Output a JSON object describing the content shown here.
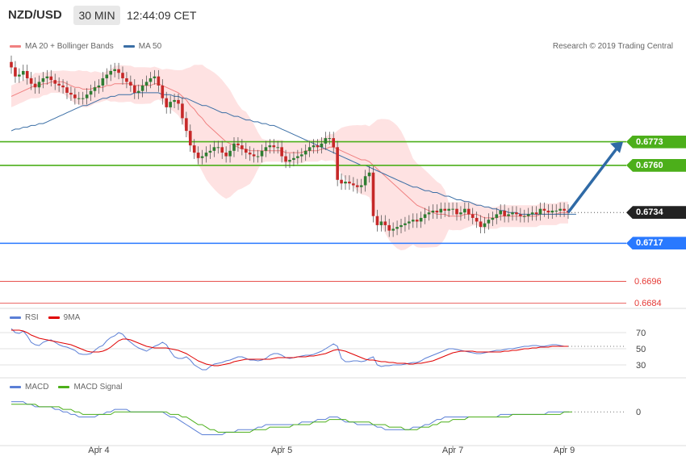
{
  "header": {
    "symbol": "NZD/USD",
    "timeframe": "30 MIN",
    "time": "12:44:09 CET"
  },
  "legend_main": [
    {
      "label": "MA 20 + Bollinger Bands",
      "color": "#f08080"
    },
    {
      "label": "MA 50",
      "color": "#3a6ea5"
    }
  ],
  "research": "Research © 2019 Trading Central",
  "price_levels": [
    {
      "value": 0.6773,
      "label": "0.6773",
      "color": "#4caf1a",
      "style": "solid-green"
    },
    {
      "value": 0.676,
      "label": "0.6760",
      "color": "#4caf1a",
      "style": "solid-green"
    },
    {
      "value": 0.6734,
      "label": "0.6734",
      "color": "#222222",
      "style": "current"
    },
    {
      "value": 0.6717,
      "label": "0.6717",
      "color": "#2979ff",
      "style": "solid-blue"
    },
    {
      "value": 0.6696,
      "label": "0.6696",
      "color": "#e53935",
      "style": "thin-red"
    },
    {
      "value": 0.6684,
      "label": "0.6684",
      "color": "#e53935",
      "style": "thin-red"
    }
  ],
  "rsi_panel": {
    "legend": [
      {
        "label": "RSI",
        "color": "#5b7fd6"
      },
      {
        "label": "9MA",
        "color": "#e00000"
      }
    ],
    "ticks": [
      "70",
      "50",
      "30"
    ]
  },
  "macd_panel": {
    "legend": [
      {
        "label": "MACD",
        "color": "#5b7fd6"
      },
      {
        "label": "MACD Signal",
        "color": "#4caf1a"
      }
    ],
    "ticks": [
      "0"
    ]
  },
  "x_labels": [
    "Apr 4",
    "Apr 5",
    "Apr 7",
    "Apr 9"
  ],
  "chart_data": {
    "type": "candlestick",
    "symbol": "NZD/USD",
    "timeframe": "30 MIN",
    "ylim": [
      0.6682,
      0.682
    ],
    "rsi_ylim": [
      20,
      80
    ],
    "macd_ylim": [
      -0.0012,
      0.0008
    ],
    "closes": [
      0.6814,
      0.6809,
      0.681,
      0.6812,
      0.6808,
      0.6805,
      0.6803,
      0.6806,
      0.6808,
      0.6809,
      0.6807,
      0.6805,
      0.6804,
      0.6803,
      0.68,
      0.6799,
      0.6797,
      0.6797,
      0.6797,
      0.6799,
      0.6801,
      0.6803,
      0.6804,
      0.6808,
      0.681,
      0.6812,
      0.6813,
      0.6811,
      0.6808,
      0.6806,
      0.6804,
      0.68,
      0.6801,
      0.6804,
      0.6806,
      0.6808,
      0.6809,
      0.6804,
      0.6797,
      0.6792,
      0.6795,
      0.6796,
      0.6794,
      0.6786,
      0.6779,
      0.6771,
      0.6767,
      0.6764,
      0.6765,
      0.6767,
      0.6768,
      0.677,
      0.677,
      0.6767,
      0.6765,
      0.6768,
      0.6772,
      0.6771,
      0.6769,
      0.6767,
      0.6766,
      0.6765,
      0.6765,
      0.6768,
      0.677,
      0.6771,
      0.677,
      0.677,
      0.6765,
      0.6762,
      0.6763,
      0.6764,
      0.6765,
      0.6766,
      0.6768,
      0.677,
      0.6771,
      0.677,
      0.6772,
      0.6775,
      0.6775,
      0.677,
      0.6752,
      0.675,
      0.6751,
      0.675,
      0.6749,
      0.6748,
      0.6749,
      0.6754,
      0.6756,
      0.6732,
      0.6727,
      0.6729,
      0.6727,
      0.6724,
      0.6725,
      0.6726,
      0.6727,
      0.6728,
      0.6729,
      0.673,
      0.6729,
      0.6731,
      0.6733,
      0.6734,
      0.6735,
      0.6734,
      0.6736,
      0.6735,
      0.6736,
      0.6736,
      0.6733,
      0.6734,
      0.6736,
      0.6733,
      0.6731,
      0.6729,
      0.6726,
      0.6728,
      0.673,
      0.6731,
      0.6733,
      0.6735,
      0.6732,
      0.6733,
      0.6734,
      0.6733,
      0.6732,
      0.6732,
      0.6733,
      0.6734,
      0.6733,
      0.6736,
      0.6735,
      0.6734,
      0.6735,
      0.6735,
      0.6736,
      0.6735,
      0.6734
    ],
    "ma20": [
      0.6798,
      0.6799,
      0.68,
      0.6801,
      0.6802,
      0.6803,
      0.6804,
      0.6804,
      0.6805,
      0.6805,
      0.6806,
      0.6806,
      0.6806,
      0.6806,
      0.6805,
      0.6804,
      0.6803,
      0.6803,
      0.6802,
      0.6802,
      0.6802,
      0.6803,
      0.6803,
      0.6803,
      0.6804,
      0.6804,
      0.6805,
      0.6805,
      0.6805,
      0.6805,
      0.6805,
      0.6804,
      0.6804,
      0.6804,
      0.6804,
      0.6804,
      0.6805,
      0.6805,
      0.6804,
      0.6803,
      0.6802,
      0.6801,
      0.68,
      0.6798,
      0.6796,
      0.6793,
      0.6791,
      0.6788,
      0.6786,
      0.6783,
      0.6781,
      0.6779,
      0.6777,
      0.6775,
      0.6773,
      0.6772,
      0.6771,
      0.677,
      0.6769,
      0.6769,
      0.6768,
      0.6768,
      0.6768,
      0.6768,
      0.6768,
      0.6768,
      0.6768,
      0.6768,
      0.6768,
      0.6767,
      0.6767,
      0.6767,
      0.6767,
      0.6767,
      0.6768,
      0.6768,
      0.6768,
      0.6768,
      0.6769,
      0.6769,
      0.677,
      0.677,
      0.6769,
      0.6768,
      0.6767,
      0.6766,
      0.6765,
      0.6764,
      0.6763,
      0.6763,
      0.6762,
      0.676,
      0.6758,
      0.6756,
      0.6754,
      0.6752,
      0.675,
      0.6748,
      0.6746,
      0.6744,
      0.6742,
      0.674,
      0.6738,
      0.6737,
      0.6736,
      0.6735,
      0.6734,
      0.6733,
      0.6733,
      0.6733,
      0.6732,
      0.6732,
      0.6732,
      0.6732,
      0.6733,
      0.6733,
      0.6733,
      0.6733,
      0.6732,
      0.6731,
      0.6731,
      0.6731,
      0.6731,
      0.6732,
      0.6732,
      0.6732,
      0.6732,
      0.6732,
      0.6732,
      0.6732,
      0.6732,
      0.6732,
      0.6732,
      0.6733,
      0.6733,
      0.6733,
      0.6733,
      0.6733,
      0.6734,
      0.6734,
      0.6734
    ],
    "ma50": [
      0.6779,
      0.678,
      0.678,
      0.6781,
      0.6781,
      0.6782,
      0.6782,
      0.6783,
      0.6783,
      0.6784,
      0.6785,
      0.6786,
      0.6787,
      0.6788,
      0.6789,
      0.679,
      0.6791,
      0.6792,
      0.6793,
      0.6793,
      0.6794,
      0.6795,
      0.6796,
      0.6797,
      0.6797,
      0.6798,
      0.6798,
      0.6799,
      0.6799,
      0.6799,
      0.6799,
      0.68,
      0.68,
      0.68,
      0.68,
      0.68,
      0.68,
      0.68,
      0.6799,
      0.6799,
      0.6799,
      0.6798,
      0.6798,
      0.6797,
      0.6797,
      0.6796,
      0.6795,
      0.6794,
      0.6793,
      0.6793,
      0.6792,
      0.6791,
      0.679,
      0.6789,
      0.6789,
      0.6788,
      0.6787,
      0.6787,
      0.6786,
      0.6785,
      0.6785,
      0.6784,
      0.6784,
      0.6783,
      0.6783,
      0.6782,
      0.6782,
      0.6781,
      0.678,
      0.6779,
      0.6778,
      0.6777,
      0.6776,
      0.6775,
      0.6774,
      0.6773,
      0.6772,
      0.6771,
      0.677,
      0.6769,
      0.6768,
      0.6767,
      0.6766,
      0.6765,
      0.6764,
      0.6763,
      0.6762,
      0.6761,
      0.676,
      0.676,
      0.6759,
      0.6758,
      0.6757,
      0.6756,
      0.6755,
      0.6754,
      0.6753,
      0.6752,
      0.6751,
      0.675,
      0.6749,
      0.6748,
      0.6748,
      0.6747,
      0.6746,
      0.6746,
      0.6745,
      0.6745,
      0.6744,
      0.6743,
      0.6743,
      0.6742,
      0.6741,
      0.6741,
      0.674,
      0.674,
      0.6739,
      0.6738,
      0.6738,
      0.6737,
      0.6737,
      0.6736,
      0.6736,
      0.6735,
      0.6735,
      0.6734,
      0.6734,
      0.6734,
      0.6733,
      0.6733,
      0.6733,
      0.6733,
      0.6733,
      0.6733,
      0.6733,
      0.6733,
      0.6733,
      0.6733,
      0.6733,
      0.6733,
      0.6733,
      0.6733,
      0.6733
    ],
    "rsi": [
      75,
      70,
      69,
      72,
      66,
      58,
      55,
      54,
      58,
      60,
      61,
      58,
      55,
      53,
      52,
      50,
      48,
      44,
      43,
      43,
      44,
      48,
      52,
      54,
      60,
      64,
      66,
      70,
      68,
      62,
      58,
      54,
      51,
      49,
      47,
      50,
      53,
      55,
      58,
      55,
      47,
      40,
      38,
      38,
      40,
      36,
      30,
      27,
      24,
      24,
      28,
      31,
      32,
      33,
      35,
      36,
      38,
      40,
      40,
      38,
      36,
      36,
      35,
      36,
      38,
      42,
      44,
      44,
      42,
      39,
      38,
      39,
      40,
      41,
      42,
      42,
      43,
      45,
      47,
      50,
      53,
      56,
      53,
      38,
      34,
      34,
      35,
      35,
      34,
      35,
      38,
      40,
      30,
      28,
      29,
      29,
      30,
      30,
      30,
      31,
      32,
      33,
      33,
      35,
      38,
      40,
      42,
      44,
      46,
      48,
      50,
      50,
      49,
      48,
      47,
      46,
      45,
      44,
      44,
      45,
      46,
      47,
      48,
      48,
      49,
      50,
      50,
      51,
      52,
      53,
      53,
      54,
      54,
      53,
      53,
      54,
      55,
      55,
      54,
      53,
      53
    ],
    "rsi_ma": [
      73,
      73,
      73,
      72,
      70,
      67,
      65,
      63,
      62,
      61,
      60,
      59,
      58,
      57,
      56,
      55,
      53,
      51,
      49,
      47,
      46,
      46,
      46,
      47,
      49,
      52,
      56,
      60,
      62,
      62,
      61,
      59,
      57,
      55,
      53,
      52,
      51,
      51,
      51,
      51,
      50,
      49,
      48,
      46,
      44,
      41,
      38,
      35,
      33,
      31,
      30,
      29,
      29,
      30,
      31,
      32,
      34,
      35,
      36,
      37,
      37,
      37,
      37,
      37,
      37,
      37,
      38,
      39,
      39,
      39,
      39,
      39,
      40,
      40,
      40,
      41,
      41,
      42,
      43,
      44,
      46,
      48,
      49,
      48,
      47,
      45,
      43,
      41,
      39,
      37,
      36,
      36,
      35,
      34,
      34,
      33,
      33,
      32,
      32,
      32,
      31,
      31,
      32,
      32,
      33,
      34,
      35,
      37,
      39,
      41,
      43,
      45,
      46,
      47,
      47,
      47,
      47,
      46,
      46,
      46,
      46,
      46,
      46,
      46,
      47,
      47,
      48,
      48,
      49,
      50,
      50,
      51,
      51,
      52,
      52,
      52,
      53,
      53,
      53,
      53,
      53
    ],
    "macd": [
      0.0004,
      0.0004,
      0.0004,
      0.0004,
      0.0003,
      0.0003,
      0.0002,
      0.0002,
      0.0002,
      0.0002,
      0.0002,
      0.0001,
      0.0001,
      0.0,
      0.0,
      -0.0001,
      -0.0001,
      -0.0002,
      -0.0002,
      -0.0002,
      -0.0002,
      -0.0002,
      -0.0001,
      -0.0001,
      0.0,
      0.0,
      0.0001,
      0.0001,
      0.0001,
      0.0001,
      0.0,
      0.0,
      0.0,
      0.0,
      0.0,
      0.0,
      0.0,
      0.0,
      0.0,
      -0.0001,
      -0.0002,
      -0.0002,
      -0.0003,
      -0.0004,
      -0.0005,
      -0.0006,
      -0.0007,
      -0.0008,
      -0.0009,
      -0.0009,
      -0.0009,
      -0.0009,
      -0.0009,
      -0.0009,
      -0.0008,
      -0.0008,
      -0.0008,
      -0.0007,
      -0.0007,
      -0.0007,
      -0.0007,
      -0.0007,
      -0.0006,
      -0.0006,
      -0.0005,
      -0.0005,
      -0.0005,
      -0.0005,
      -0.0005,
      -0.0005,
      -0.0005,
      -0.0005,
      -0.0005,
      -0.0004,
      -0.0004,
      -0.0004,
      -0.0004,
      -0.0003,
      -0.0003,
      -0.0003,
      -0.0002,
      -0.0002,
      -0.0002,
      -0.0003,
      -0.0004,
      -0.0004,
      -0.0004,
      -0.0005,
      -0.0005,
      -0.0005,
      -0.0005,
      -0.0005,
      -0.0006,
      -0.0006,
      -0.0007,
      -0.0007,
      -0.0007,
      -0.0007,
      -0.0007,
      -0.0007,
      -0.0007,
      -0.0006,
      -0.0006,
      -0.0006,
      -0.0005,
      -0.0005,
      -0.0004,
      -0.0003,
      -0.0003,
      -0.0002,
      -0.0002,
      -0.0002,
      -0.0002,
      -0.0002,
      -0.0002,
      -0.0002,
      -0.0002,
      -0.0002,
      -0.0002,
      -0.0002,
      -0.0002,
      -0.0002,
      -0.0002,
      -0.0001,
      -0.0001,
      -0.0001,
      -0.0001,
      -0.0001,
      -0.0001,
      -0.0001,
      -0.0001,
      -0.0001,
      -0.0001,
      -0.0001,
      -0.0001,
      0.0,
      0.0,
      0.0,
      0.0,
      0.0,
      0.0
    ],
    "macd_signal": [
      0.0003,
      0.0003,
      0.0003,
      0.0003,
      0.0003,
      0.0003,
      0.0003,
      0.0002,
      0.0002,
      0.0002,
      0.0002,
      0.0002,
      0.0002,
      0.0001,
      0.0001,
      0.0001,
      0.0,
      0.0,
      -0.0001,
      -0.0001,
      -0.0001,
      -0.0001,
      -0.0001,
      -0.0001,
      -0.0001,
      -0.0001,
      0.0,
      0.0,
      0.0,
      0.0,
      0.0,
      0.0,
      0.0,
      0.0,
      0.0,
      0.0,
      0.0,
      0.0,
      0.0,
      0.0,
      -0.0001,
      -0.0001,
      -0.0001,
      -0.0002,
      -0.0002,
      -0.0003,
      -0.0004,
      -0.0005,
      -0.0005,
      -0.0006,
      -0.0007,
      -0.0007,
      -0.0008,
      -0.0008,
      -0.0008,
      -0.0008,
      -0.0008,
      -0.0008,
      -0.0008,
      -0.0008,
      -0.0008,
      -0.0007,
      -0.0007,
      -0.0007,
      -0.0007,
      -0.0006,
      -0.0006,
      -0.0006,
      -0.0006,
      -0.0006,
      -0.0006,
      -0.0005,
      -0.0005,
      -0.0005,
      -0.0005,
      -0.0005,
      -0.0004,
      -0.0004,
      -0.0004,
      -0.0004,
      -0.0003,
      -0.0003,
      -0.0003,
      -0.0003,
      -0.0003,
      -0.0004,
      -0.0004,
      -0.0004,
      -0.0004,
      -0.0004,
      -0.0004,
      -0.0005,
      -0.0005,
      -0.0005,
      -0.0005,
      -0.0006,
      -0.0006,
      -0.0006,
      -0.0006,
      -0.0007,
      -0.0007,
      -0.0007,
      -0.0007,
      -0.0006,
      -0.0006,
      -0.0006,
      -0.0005,
      -0.0005,
      -0.0004,
      -0.0004,
      -0.0004,
      -0.0003,
      -0.0003,
      -0.0003,
      -0.0003,
      -0.0002,
      -0.0002,
      -0.0002,
      -0.0002,
      -0.0002,
      -0.0002,
      -0.0002,
      -0.0002,
      -0.0002,
      -0.0002,
      -0.0002,
      -0.0001,
      -0.0001,
      -0.0001,
      -0.0001,
      -0.0001,
      -0.0001,
      -0.0001,
      -0.0001,
      -0.0001,
      -0.0001,
      -0.0001,
      -0.0001,
      -0.0001,
      0.0,
      0.0,
      0.0
    ],
    "projection": {
      "from_value": 0.6734,
      "to_value": 0.6773
    }
  }
}
